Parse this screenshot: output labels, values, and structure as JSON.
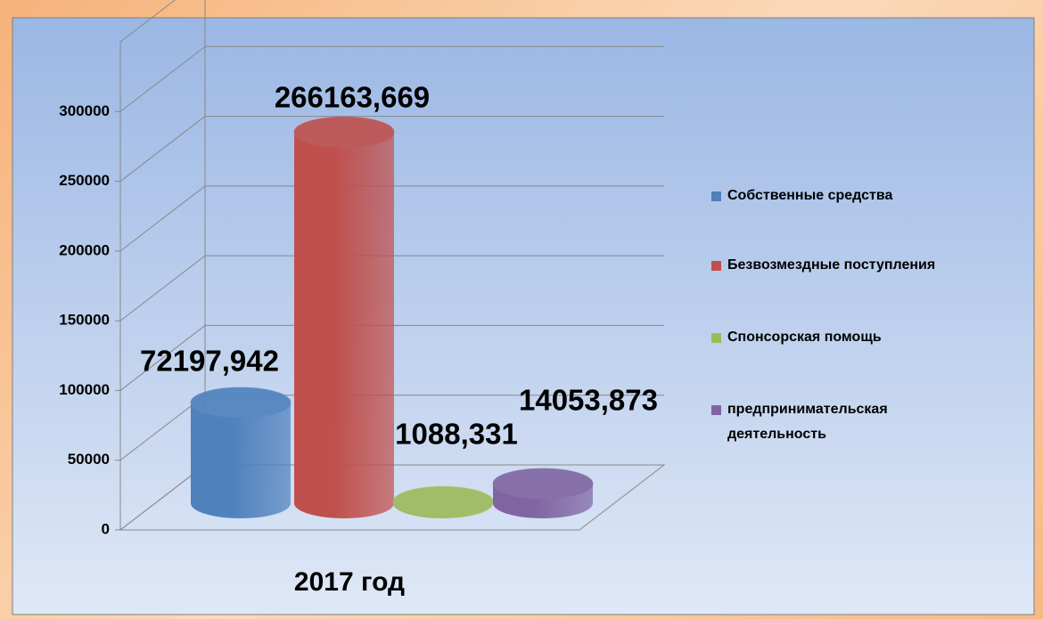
{
  "chart_data": {
    "type": "bar",
    "categories": [
      "2017 год"
    ],
    "series": [
      {
        "name": "Собственные средства",
        "color": "#4f81bd",
        "values": [
          72197.942
        ],
        "value_labels": [
          "72197,942"
        ]
      },
      {
        "name": "Безвозмездные поступления",
        "color": "#c0504d",
        "values": [
          266163.669
        ],
        "value_labels": [
          "266163,669"
        ]
      },
      {
        "name": "Спонсорская помощь",
        "color": "#9bbb59",
        "values": [
          1088.331
        ],
        "value_labels": [
          "1088,331"
        ]
      },
      {
        "name": "предпринимательская деятельность",
        "color": "#8064a2",
        "values": [
          14053.873
        ],
        "value_labels": [
          "14053,873"
        ]
      }
    ],
    "ylim": [
      0,
      350000
    ],
    "yticks": [
      0,
      50000,
      100000,
      150000,
      200000,
      250000,
      300000
    ],
    "grid": true,
    "legend": "right"
  }
}
